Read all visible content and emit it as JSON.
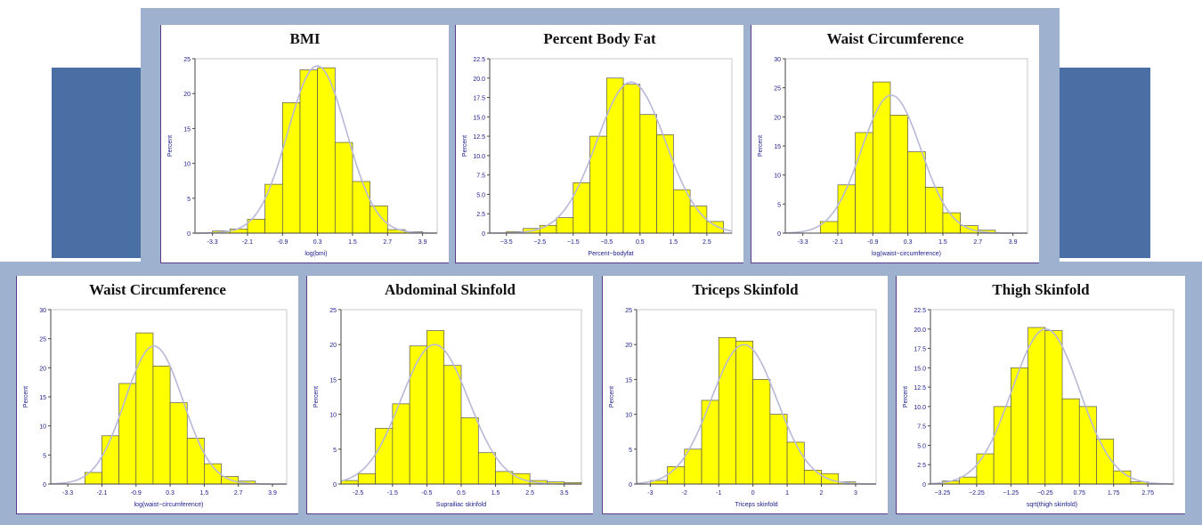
{
  "colors": {
    "background_block": "#4a6fa5",
    "frame": "#9eb1cf",
    "bar_fill": "#ffff00",
    "bar_stroke": "#555555",
    "curve": "#b8b8d8",
    "axis_text": "#1a1a8c"
  },
  "panels": [
    {
      "title": "BMI",
      "chart_data": {
        "type": "bar",
        "title": "BMI",
        "xlabel": "log(bmi)",
        "ylabel": "Percent",
        "ylim": [
          0,
          25
        ],
        "yticks": [
          "0",
          "5",
          "10",
          "15",
          "20",
          "25"
        ],
        "xticks": [
          "-3.3",
          "-2.1",
          "-0.9",
          "0.3",
          "1.5",
          "2.7",
          "3.9"
        ],
        "xtick_values": [
          -3.3,
          -2.1,
          -0.9,
          0.3,
          1.5,
          2.7,
          3.9
        ],
        "xlim": [
          -3.9,
          4.4
        ],
        "bin_edges": [
          -3.3,
          -2.7,
          -2.1,
          -1.5,
          -0.9,
          -0.3,
          0.3,
          0.9,
          1.5,
          2.1,
          2.7,
          3.3,
          3.9
        ],
        "values": [
          0.3,
          0.6,
          2,
          7,
          18.7,
          23.4,
          23.7,
          13,
          7.4,
          3.9,
          0.5,
          0.2
        ]
      }
    },
    {
      "title": "Percent Body Fat",
      "chart_data": {
        "type": "bar",
        "title": "Percent Body Fat",
        "xlabel": "Percent−bodyfat",
        "ylabel": "Percent",
        "ylim": [
          0,
          22.5
        ],
        "yticks": [
          "0",
          "2.5",
          "5.0",
          "7.5",
          "10.0",
          "12.5",
          "15.0",
          "17.5",
          "20.0",
          "22.5"
        ],
        "xticks": [
          "−3.5",
          "−2.5",
          "−1.5",
          "−0.5",
          "0.5",
          "1.5",
          "2.5"
        ],
        "xtick_values": [
          -3.5,
          -2.5,
          -1.5,
          -0.5,
          0.5,
          1.5,
          2.5
        ],
        "xlim": [
          -4.0,
          3.25
        ],
        "bin_edges": [
          -3.5,
          -3,
          -2.5,
          -2,
          -1.5,
          -1,
          -0.5,
          0,
          0.5,
          1,
          1.5,
          2,
          2.5,
          3
        ],
        "values": [
          0.2,
          0.6,
          1,
          2,
          6.5,
          12.5,
          20,
          19.2,
          15.3,
          12.7,
          5.6,
          3.5,
          1.5
        ]
      }
    },
    {
      "title": "Waist Circumference",
      "chart_data": {
        "type": "bar",
        "title": "Waist Circumference",
        "xlabel": "log(waist−circumference)",
        "ylabel": "Percent",
        "ylim": [
          0,
          30
        ],
        "yticks": [
          "0",
          "5",
          "10",
          "15",
          "20",
          "25",
          "30"
        ],
        "xticks": [
          "-3.3",
          "-2.1",
          "-0.9",
          "0.3",
          "1.5",
          "2.7",
          "3.9"
        ],
        "xtick_values": [
          -3.3,
          -2.1,
          -0.9,
          0.3,
          1.5,
          2.7,
          3.9
        ],
        "xlim": [
          -3.9,
          4.4
        ],
        "bin_edges": [
          -2.7,
          -2.1,
          -1.5,
          -0.9,
          -0.3,
          0.3,
          0.9,
          1.5,
          2.1,
          2.7,
          3.3
        ],
        "values": [
          2,
          8.3,
          17.3,
          26,
          20.3,
          14,
          7.9,
          3.5,
          1.3,
          0.5
        ]
      }
    },
    {
      "title": "Waist Circumference",
      "chart_data": {
        "type": "bar",
        "title": "Waist Circumference",
        "xlabel": "log(waist−circumference)",
        "ylabel": "Percent",
        "ylim": [
          0,
          30
        ],
        "yticks": [
          "0",
          "5",
          "10",
          "15",
          "20",
          "25",
          "30"
        ],
        "xticks": [
          "-3.3",
          "-2.1",
          "-0.9",
          "0.3",
          "1.5",
          "2.7",
          "3.9"
        ],
        "xtick_values": [
          -3.3,
          -2.1,
          -0.9,
          0.3,
          1.5,
          2.7,
          3.9
        ],
        "xlim": [
          -3.9,
          4.4
        ],
        "bin_edges": [
          -2.7,
          -2.1,
          -1.5,
          -0.9,
          -0.3,
          0.3,
          0.9,
          1.5,
          2.1,
          2.7,
          3.3
        ],
        "values": [
          2,
          8.3,
          17.3,
          26,
          20.3,
          14,
          7.9,
          3.5,
          1.3,
          0.5
        ]
      }
    },
    {
      "title": "Abdominal Skinfold",
      "chart_data": {
        "type": "bar",
        "title": "Abdominal Skinfold",
        "xlabel": "Suprailiac skinfold",
        "ylabel": "Percent",
        "ylim": [
          0,
          25
        ],
        "yticks": [
          "0",
          "5",
          "10",
          "15",
          "20",
          "25"
        ],
        "xticks": [
          "-2.5",
          "-1.5",
          "-0.5",
          "0.5",
          "1.5",
          "2.5",
          "3.5"
        ],
        "xtick_values": [
          -2.5,
          -1.5,
          -0.5,
          0.5,
          1.5,
          2.5,
          3.5
        ],
        "xlim": [
          -3.0,
          4.0
        ],
        "bin_edges": [
          -3,
          -2.5,
          -2,
          -1.5,
          -1,
          -0.5,
          0,
          0.5,
          1,
          1.5,
          2,
          2.5,
          3,
          3.5,
          4
        ],
        "values": [
          0.5,
          1.5,
          8,
          11.5,
          19.8,
          22,
          17,
          9.5,
          4.5,
          1.8,
          1.5,
          0.5,
          0.3,
          0.2
        ]
      }
    },
    {
      "title": "Triceps Skinfold",
      "chart_data": {
        "type": "bar",
        "title": "Triceps Skinfold",
        "xlabel": "Triceps skinfold",
        "ylabel": "Percent",
        "ylim": [
          0,
          25
        ],
        "yticks": [
          "0",
          "5",
          "10",
          "15",
          "20",
          "25"
        ],
        "xticks": [
          "-3",
          "-2",
          "-1",
          "0",
          "1",
          "2",
          "3"
        ],
        "xtick_values": [
          -3,
          -2,
          -1,
          0,
          1,
          2,
          3
        ],
        "xlim": [
          -3.4,
          3.6
        ],
        "bin_edges": [
          -3,
          -2.5,
          -2,
          -1.5,
          -1,
          -0.5,
          0,
          0.5,
          1,
          1.5,
          2,
          2.5,
          3
        ],
        "values": [
          0.5,
          2.5,
          5,
          12,
          21,
          20.5,
          15,
          10,
          6,
          2,
          1.5,
          0.3
        ]
      }
    },
    {
      "title": "Thigh Skinfold",
      "chart_data": {
        "type": "bar",
        "title": "Thigh Skinfold",
        "xlabel": "sqrt(thigh skinfold)",
        "ylabel": "Percent",
        "ylim": [
          0,
          22.5
        ],
        "yticks": [
          "0",
          "2.5",
          "5.0",
          "7.5",
          "10.0",
          "12.5",
          "15.0",
          "17.5",
          "20.0",
          "22.5"
        ],
        "xticks": [
          "−3.25",
          "−2.25",
          "−1.25",
          "−0.25",
          "0.75",
          "1.75",
          "2.75"
        ],
        "xtick_values": [
          -3.25,
          -2.25,
          -1.25,
          -0.25,
          0.75,
          1.75,
          2.75
        ],
        "xlim": [
          -3.6,
          3.5
        ],
        "bin_edges": [
          -3.25,
          -2.75,
          -2.25,
          -1.75,
          -1.25,
          -0.75,
          -0.25,
          0.25,
          0.75,
          1.25,
          1.75,
          2.25,
          2.75
        ],
        "values": [
          0.4,
          0.9,
          3.9,
          10,
          15,
          20.2,
          19.8,
          11,
          10,
          5.8,
          1.7,
          0.3
        ]
      }
    }
  ]
}
